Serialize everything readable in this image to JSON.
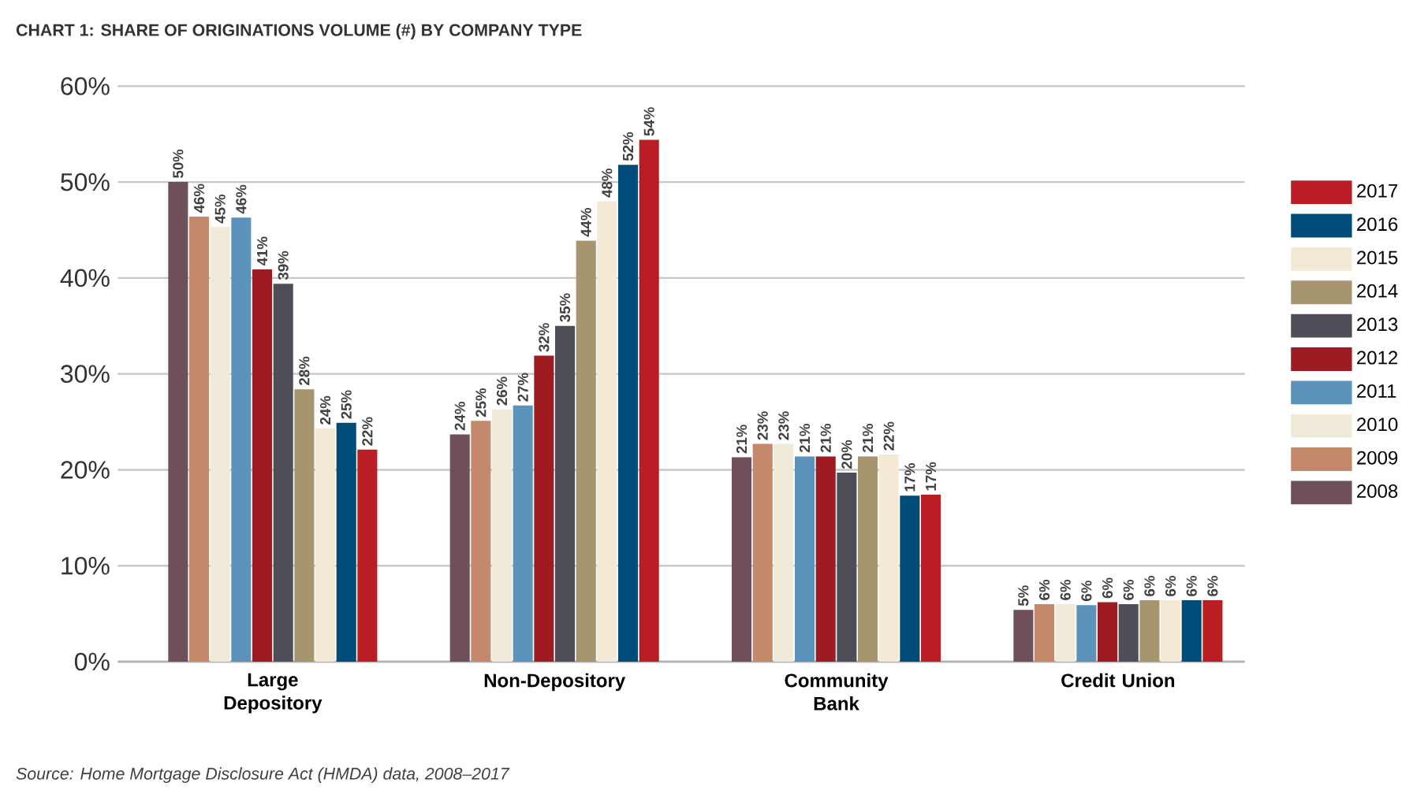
{
  "chart_data": {
    "type": "bar",
    "title": "CHART 1: SHARE OF ORIGINATIONS VOLUME (#) BY COMPANY TYPE",
    "categories": [
      "Large Depository",
      "Non-Depository",
      "Community Bank",
      "Credit Union"
    ],
    "series": [
      {
        "name": "2008",
        "color": "#6e4f5a",
        "values": [
          50.0,
          23.7,
          21.3,
          5.4
        ],
        "value_labels": [
          "50%",
          "24%",
          "21%",
          "5%"
        ]
      },
      {
        "name": "2009",
        "color": "#c4896a",
        "values": [
          46.4,
          25.1,
          22.7,
          6.0
        ],
        "value_labels": [
          "46%",
          "25%",
          "23%",
          "6%"
        ]
      },
      {
        "name": "2010",
        "color": "#f0ead8",
        "values": [
          45.3,
          26.3,
          22.7,
          6.0
        ],
        "value_labels": [
          "45%",
          "26%",
          "23%",
          "6%"
        ]
      },
      {
        "name": "2011",
        "color": "#5b93bd",
        "values": [
          46.3,
          26.7,
          21.4,
          5.9
        ],
        "value_labels": [
          "46%",
          "27%",
          "21%",
          "6%"
        ]
      },
      {
        "name": "2012",
        "color": "#9e1b22",
        "values": [
          40.9,
          31.9,
          21.4,
          6.2
        ],
        "value_labels": [
          "41%",
          "32%",
          "21%",
          "6%"
        ]
      },
      {
        "name": "2013",
        "color": "#4d4e57",
        "values": [
          39.4,
          35.0,
          19.7,
          6.0
        ],
        "value_labels": [
          "39%",
          "35%",
          "20%",
          "6%"
        ]
      },
      {
        "name": "2014",
        "color": "#a6956f",
        "values": [
          28.4,
          43.9,
          21.4,
          6.4
        ],
        "value_labels": [
          "28%",
          "44%",
          "21%",
          "6%"
        ]
      },
      {
        "name": "2015",
        "color": "#f3e9d5",
        "values": [
          24.3,
          48.0,
          21.6,
          6.4
        ],
        "value_labels": [
          "24%",
          "48%",
          "22%",
          "6%"
        ]
      },
      {
        "name": "2016",
        "color": "#004c79",
        "values": [
          24.9,
          51.8,
          17.3,
          6.4
        ],
        "value_labels": [
          "25%",
          "52%",
          "17%",
          "6%"
        ]
      },
      {
        "name": "2017",
        "color": "#bb1d24",
        "values": [
          22.1,
          54.4,
          17.4,
          6.4
        ],
        "value_labels": [
          "22%",
          "54%",
          "17%",
          "6%"
        ]
      }
    ],
    "ylim": [
      0,
      60
    ],
    "yticks": [
      {
        "value": 0,
        "label": "0%"
      },
      {
        "value": 10,
        "label": "10%"
      },
      {
        "value": 20,
        "label": "20%"
      },
      {
        "value": 30,
        "label": "30%"
      },
      {
        "value": 40,
        "label": "40%"
      },
      {
        "value": 50,
        "label": "50%"
      },
      {
        "value": 60,
        "label": "60%"
      }
    ],
    "grid": "y",
    "legend": "right",
    "annotations": [
      "Source: Home Mortgage Disclosure Act (HMDA) data, 2008–2017"
    ]
  }
}
